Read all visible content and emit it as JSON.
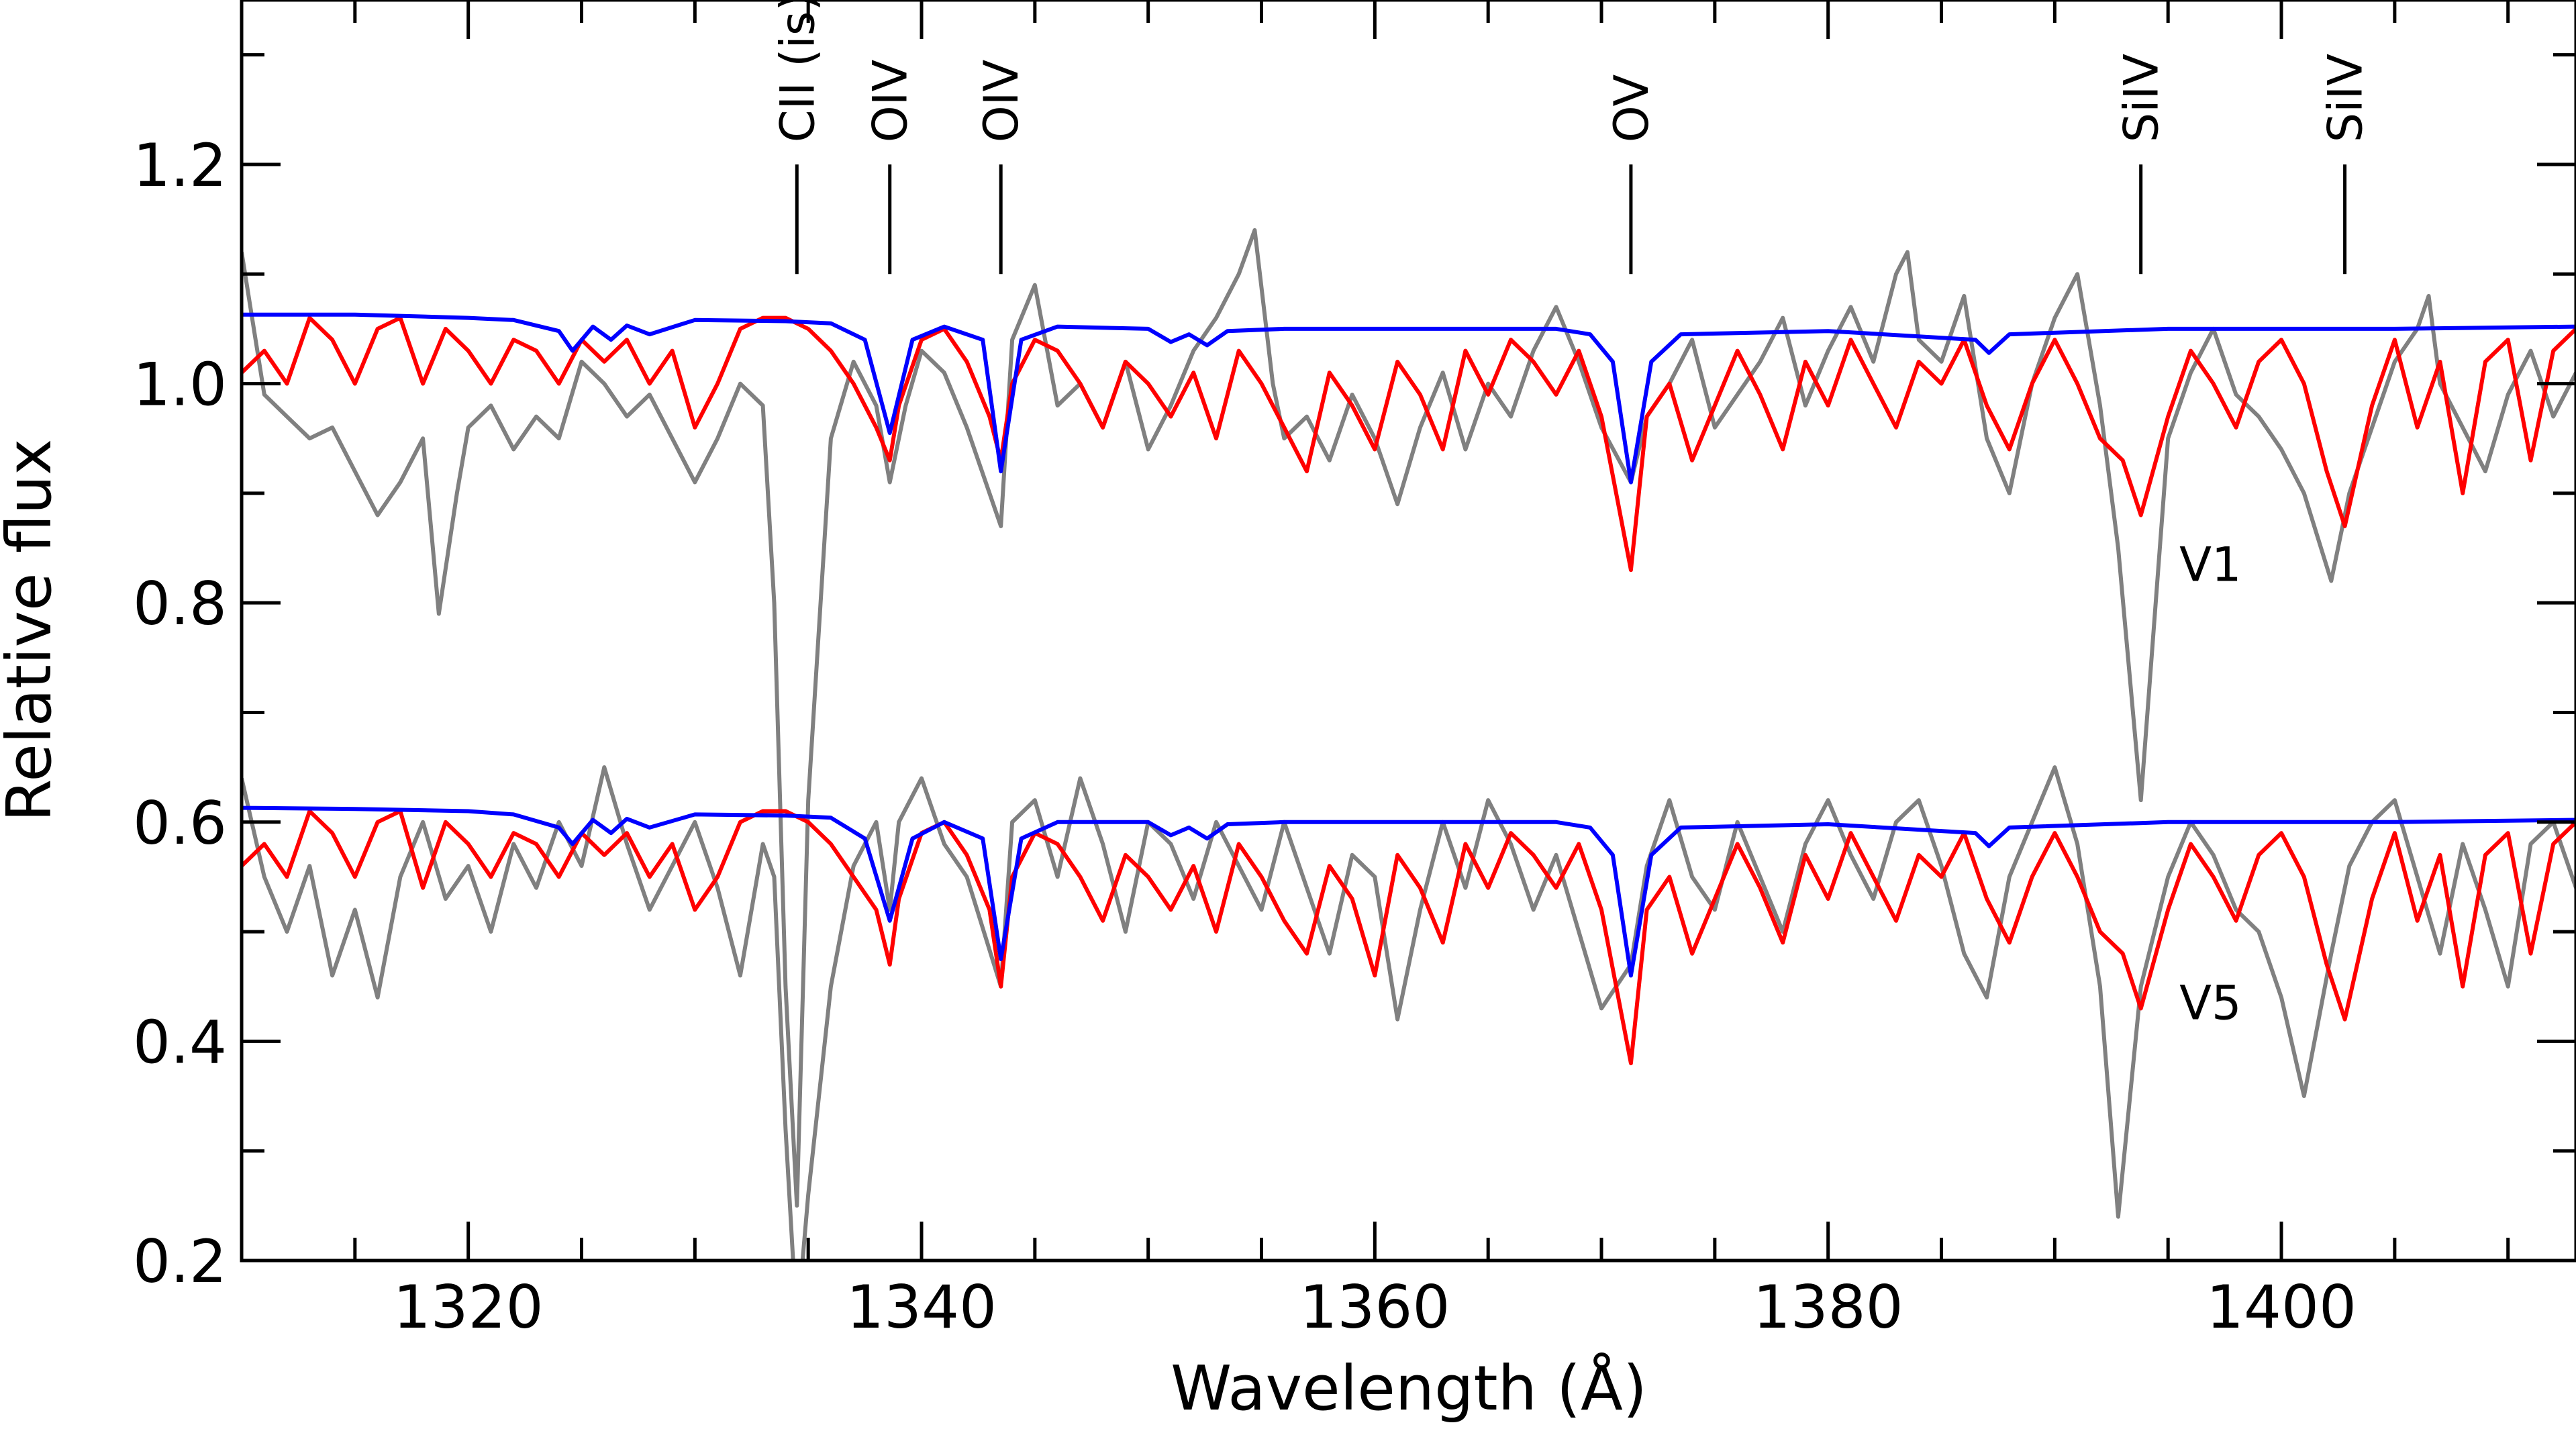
{
  "chart_data": {
    "type": "line",
    "title": "",
    "xlabel": "Wavelength (Å)",
    "ylabel": "Relative flux",
    "xlim": [
      1310,
      1413
    ],
    "ylim": [
      0.2,
      1.35
    ],
    "grid": false,
    "x_major_ticks": [
      1320,
      1340,
      1360,
      1380,
      1400
    ],
    "x_tick_labels": [
      "1320",
      "1340",
      "1360",
      "1380",
      "1400"
    ],
    "x_minor_step": 5,
    "y_major_ticks": [
      0.2,
      0.4,
      0.6,
      0.8,
      1.0,
      1.2
    ],
    "y_tick_labels": [
      "0.2",
      "0.4",
      "0.6",
      "0.8",
      "1.0",
      "1.2"
    ],
    "y_minor_step": 0.1,
    "line_ids": [
      {
        "label": "CII (is)",
        "wavelength": 1334.5
      },
      {
        "label": "OIV",
        "wavelength": 1338.6
      },
      {
        "label": "OIV",
        "wavelength": 1343.5
      },
      {
        "label": "OV",
        "wavelength": 1371.3
      },
      {
        "label": "SiIV",
        "wavelength": 1393.8
      },
      {
        "label": "SiIV",
        "wavelength": 1402.8
      }
    ],
    "spectrum_labels": [
      {
        "text": "V1",
        "x": 1395.5,
        "y": 0.82
      },
      {
        "text": "V5",
        "x": 1395.5,
        "y": 0.42
      }
    ],
    "series": [
      {
        "color": "#808080",
        "group": "V1",
        "x": [
          1310,
          1311,
          1312,
          1313,
          1314,
          1315,
          1316,
          1317,
          1318,
          1318.7,
          1319.5,
          1320,
          1321,
          1322,
          1323,
          1324,
          1325,
          1326,
          1327,
          1328,
          1329,
          1330,
          1331,
          1332,
          1333,
          1333.5,
          1334,
          1334.5,
          1335,
          1336,
          1337,
          1338,
          1338.6,
          1339.3,
          1340,
          1341,
          1342,
          1343.5,
          1344,
          1345,
          1346,
          1347,
          1348,
          1349,
          1350,
          1351,
          1352,
          1353,
          1354,
          1354.7,
          1355.5,
          1356,
          1357,
          1358,
          1359,
          1360,
          1361,
          1362,
          1363,
          1364,
          1365,
          1366,
          1367,
          1368,
          1369,
          1370,
          1371.3,
          1372,
          1373,
          1374,
          1375,
          1376,
          1377,
          1378,
          1379,
          1380,
          1381,
          1382,
          1383,
          1383.5,
          1384,
          1385,
          1386,
          1387,
          1388,
          1389,
          1390,
          1391,
          1392,
          1392.8,
          1393.8,
          1395,
          1396,
          1397,
          1398,
          1399,
          1400,
          1401,
          1402.2,
          1403,
          1404,
          1405,
          1406,
          1406.5,
          1407,
          1408,
          1409,
          1410,
          1411,
          1412,
          1413
        ],
        "y": [
          1.12,
          0.99,
          0.97,
          0.95,
          0.96,
          0.92,
          0.88,
          0.91,
          0.95,
          0.79,
          0.9,
          0.96,
          0.98,
          0.94,
          0.97,
          0.95,
          1.02,
          1.0,
          0.97,
          0.99,
          0.95,
          0.91,
          0.95,
          1.0,
          0.98,
          0.8,
          0.45,
          0.25,
          0.62,
          0.95,
          1.02,
          0.98,
          0.91,
          0.98,
          1.03,
          1.01,
          0.96,
          0.87,
          1.04,
          1.09,
          0.98,
          1.0,
          0.96,
          1.02,
          0.94,
          0.98,
          1.03,
          1.06,
          1.1,
          1.14,
          1.0,
          0.95,
          0.97,
          0.93,
          0.99,
          0.95,
          0.89,
          0.96,
          1.01,
          0.94,
          1.0,
          0.97,
          1.03,
          1.07,
          1.02,
          0.96,
          0.91,
          0.97,
          1.0,
          1.04,
          0.96,
          0.99,
          1.02,
          1.06,
          0.98,
          1.03,
          1.07,
          1.02,
          1.1,
          1.12,
          1.04,
          1.02,
          1.08,
          0.95,
          0.9,
          1.0,
          1.06,
          1.1,
          0.98,
          0.85,
          0.62,
          0.95,
          1.01,
          1.05,
          0.99,
          0.97,
          0.94,
          0.9,
          0.82,
          0.9,
          0.96,
          1.02,
          1.05,
          1.08,
          1.0,
          0.96,
          0.92,
          0.99,
          1.03,
          0.97,
          1.01
        ],
        "y_note": "V1 observed spectrum, relative flux"
      },
      {
        "color": "#ff0000",
        "group": "V1",
        "x": [
          1310,
          1311,
          1312,
          1313,
          1314,
          1315,
          1316,
          1317,
          1318,
          1319,
          1320,
          1321,
          1322,
          1323,
          1324,
          1325,
          1326,
          1327,
          1328,
          1329,
          1330,
          1331,
          1332,
          1333,
          1334,
          1335,
          1336,
          1337,
          1338,
          1338.6,
          1339,
          1340,
          1341,
          1342,
          1343,
          1343.5,
          1344,
          1345,
          1346,
          1347,
          1348,
          1349,
          1350,
          1351,
          1352,
          1353,
          1354,
          1355,
          1356,
          1357,
          1358,
          1359,
          1360,
          1361,
          1362,
          1363,
          1364,
          1365,
          1366,
          1367,
          1368,
          1369,
          1370,
          1371.3,
          1372,
          1373,
          1374,
          1375,
          1376,
          1377,
          1378,
          1379,
          1380,
          1381,
          1382,
          1383,
          1384,
          1385,
          1386,
          1387,
          1388,
          1389,
          1390,
          1391,
          1392,
          1393,
          1393.8,
          1395,
          1396,
          1397,
          1398,
          1399,
          1400,
          1401,
          1402,
          1402.8,
          1404,
          1405,
          1406,
          1407,
          1408,
          1409,
          1410,
          1411,
          1412,
          1413
        ],
        "y": [
          1.01,
          1.03,
          1.0,
          1.06,
          1.04,
          1.0,
          1.05,
          1.06,
          1.0,
          1.05,
          1.03,
          1.0,
          1.04,
          1.03,
          1.0,
          1.04,
          1.02,
          1.04,
          1.0,
          1.03,
          0.96,
          1.0,
          1.05,
          1.06,
          1.06,
          1.05,
          1.03,
          1.0,
          0.96,
          0.93,
          0.98,
          1.04,
          1.05,
          1.02,
          0.97,
          0.93,
          1.0,
          1.04,
          1.03,
          1.0,
          0.96,
          1.02,
          1.0,
          0.97,
          1.01,
          0.95,
          1.03,
          1.0,
          0.96,
          0.92,
          1.01,
          0.98,
          0.94,
          1.02,
          0.99,
          0.94,
          1.03,
          0.99,
          1.04,
          1.02,
          0.99,
          1.03,
          0.97,
          0.83,
          0.97,
          1.0,
          0.93,
          0.98,
          1.03,
          0.99,
          0.94,
          1.02,
          0.98,
          1.04,
          1.0,
          0.96,
          1.02,
          1.0,
          1.04,
          0.98,
          0.94,
          1.0,
          1.04,
          1.0,
          0.95,
          0.93,
          0.88,
          0.97,
          1.03,
          1.0,
          0.96,
          1.02,
          1.04,
          1.0,
          0.92,
          0.87,
          0.98,
          1.04,
          0.96,
          1.02,
          0.9,
          1.02,
          1.04,
          0.93,
          1.03,
          1.05
        ],
        "y_note": "V1 model spectrum, relative flux"
      },
      {
        "color": "#0000ff",
        "group": "V1",
        "x": [
          1310,
          1315,
          1320,
          1322,
          1324,
          1324.6,
          1325.5,
          1326.3,
          1327,
          1328,
          1330,
          1334,
          1336,
          1337.5,
          1338.6,
          1339.6,
          1341,
          1342.7,
          1343.5,
          1344.4,
          1346,
          1350,
          1351,
          1351.8,
          1352.6,
          1353.5,
          1356,
          1362,
          1368,
          1369.5,
          1370.5,
          1371.3,
          1372.2,
          1373.5,
          1380,
          1386.5,
          1387.1,
          1388,
          1395,
          1405,
          1413
        ],
        "y": [
          1.063,
          1.063,
          1.06,
          1.058,
          1.048,
          1.03,
          1.052,
          1.04,
          1.053,
          1.045,
          1.058,
          1.057,
          1.055,
          1.04,
          0.955,
          1.04,
          1.052,
          1.04,
          0.92,
          1.04,
          1.052,
          1.05,
          1.038,
          1.045,
          1.035,
          1.048,
          1.05,
          1.05,
          1.05,
          1.045,
          1.02,
          0.91,
          1.02,
          1.045,
          1.048,
          1.04,
          1.028,
          1.045,
          1.05,
          1.05,
          1.052
        ],
        "y_note": "V1 model spectrum, relative flux"
      },
      {
        "color": "#808080",
        "group": "V5",
        "x": [
          1310,
          1311,
          1312,
          1313,
          1314,
          1315,
          1316,
          1317,
          1318,
          1319,
          1320,
          1321,
          1322,
          1323,
          1324,
          1325,
          1326,
          1327,
          1328,
          1329,
          1330,
          1331,
          1332,
          1333,
          1333.5,
          1334,
          1334.5,
          1335,
          1336,
          1337,
          1338,
          1338.6,
          1339,
          1340,
          1341,
          1342,
          1343.5,
          1344,
          1345,
          1346,
          1347,
          1348,
          1349,
          1350,
          1351,
          1352,
          1353,
          1354,
          1355,
          1356,
          1357,
          1358,
          1359,
          1360,
          1361,
          1362,
          1363,
          1364,
          1365,
          1366,
          1367,
          1368,
          1369,
          1370,
          1371.3,
          1372,
          1373,
          1374,
          1375,
          1376,
          1377,
          1378,
          1379,
          1380,
          1381,
          1382,
          1383,
          1384,
          1385,
          1386,
          1387,
          1388,
          1389,
          1390,
          1391,
          1392,
          1392.8,
          1393.8,
          1395,
          1396,
          1397,
          1398,
          1399,
          1400,
          1401,
          1402.2,
          1403,
          1404,
          1405,
          1406,
          1407,
          1408,
          1409,
          1410,
          1411,
          1412,
          1413
        ],
        "y": [
          0.64,
          0.55,
          0.5,
          0.56,
          0.46,
          0.52,
          0.44,
          0.55,
          0.6,
          0.53,
          0.56,
          0.5,
          0.58,
          0.54,
          0.6,
          0.56,
          0.65,
          0.58,
          0.52,
          0.56,
          0.6,
          0.54,
          0.46,
          0.58,
          0.55,
          0.32,
          0.14,
          0.26,
          0.45,
          0.56,
          0.6,
          0.52,
          0.6,
          0.64,
          0.58,
          0.55,
          0.45,
          0.6,
          0.62,
          0.55,
          0.64,
          0.58,
          0.5,
          0.6,
          0.58,
          0.53,
          0.6,
          0.56,
          0.52,
          0.6,
          0.54,
          0.48,
          0.57,
          0.55,
          0.42,
          0.52,
          0.6,
          0.54,
          0.62,
          0.58,
          0.52,
          0.57,
          0.5,
          0.43,
          0.47,
          0.56,
          0.62,
          0.55,
          0.52,
          0.6,
          0.55,
          0.5,
          0.58,
          0.62,
          0.57,
          0.53,
          0.6,
          0.62,
          0.56,
          0.48,
          0.44,
          0.55,
          0.6,
          0.65,
          0.58,
          0.45,
          0.24,
          0.45,
          0.55,
          0.6,
          0.57,
          0.52,
          0.5,
          0.44,
          0.35,
          0.48,
          0.56,
          0.6,
          0.62,
          0.55,
          0.48,
          0.58,
          0.52,
          0.45,
          0.58,
          0.6,
          0.54
        ],
        "y_note": "V5 observed spectrum, relative flux"
      },
      {
        "color": "#ff0000",
        "group": "V5",
        "x": [
          1310,
          1311,
          1312,
          1313,
          1314,
          1315,
          1316,
          1317,
          1318,
          1319,
          1320,
          1321,
          1322,
          1323,
          1324,
          1325,
          1326,
          1327,
          1328,
          1329,
          1330,
          1331,
          1332,
          1333,
          1334,
          1335,
          1336,
          1337,
          1338,
          1338.6,
          1339,
          1340,
          1341,
          1342,
          1343,
          1343.5,
          1344,
          1345,
          1346,
          1347,
          1348,
          1349,
          1350,
          1351,
          1352,
          1353,
          1354,
          1355,
          1356,
          1357,
          1358,
          1359,
          1360,
          1361,
          1362,
          1363,
          1364,
          1365,
          1366,
          1367,
          1368,
          1369,
          1370,
          1371.3,
          1372,
          1373,
          1374,
          1375,
          1376,
          1377,
          1378,
          1379,
          1380,
          1381,
          1382,
          1383,
          1384,
          1385,
          1386,
          1387,
          1388,
          1389,
          1390,
          1391,
          1392,
          1393,
          1393.8,
          1395,
          1396,
          1397,
          1398,
          1399,
          1400,
          1401,
          1402,
          1402.8,
          1404,
          1405,
          1406,
          1407,
          1408,
          1409,
          1410,
          1411,
          1412,
          1413
        ],
        "y": [
          0.56,
          0.58,
          0.55,
          0.61,
          0.59,
          0.55,
          0.6,
          0.61,
          0.54,
          0.6,
          0.58,
          0.55,
          0.59,
          0.58,
          0.55,
          0.59,
          0.57,
          0.59,
          0.55,
          0.58,
          0.52,
          0.55,
          0.6,
          0.61,
          0.61,
          0.6,
          0.58,
          0.55,
          0.52,
          0.47,
          0.53,
          0.59,
          0.6,
          0.57,
          0.52,
          0.45,
          0.55,
          0.59,
          0.58,
          0.55,
          0.51,
          0.57,
          0.55,
          0.52,
          0.56,
          0.5,
          0.58,
          0.55,
          0.51,
          0.48,
          0.56,
          0.53,
          0.46,
          0.57,
          0.54,
          0.49,
          0.58,
          0.54,
          0.59,
          0.57,
          0.54,
          0.58,
          0.52,
          0.38,
          0.52,
          0.55,
          0.48,
          0.53,
          0.58,
          0.54,
          0.49,
          0.57,
          0.53,
          0.59,
          0.55,
          0.51,
          0.57,
          0.55,
          0.59,
          0.53,
          0.49,
          0.55,
          0.59,
          0.55,
          0.5,
          0.48,
          0.43,
          0.52,
          0.58,
          0.55,
          0.51,
          0.57,
          0.59,
          0.55,
          0.47,
          0.42,
          0.53,
          0.59,
          0.51,
          0.57,
          0.45,
          0.57,
          0.59,
          0.48,
          0.58,
          0.6
        ],
        "y_note": "V5 model spectrum, relative flux"
      },
      {
        "color": "#0000ff",
        "group": "V5",
        "x": [
          1310,
          1315,
          1320,
          1322,
          1324,
          1324.6,
          1325.5,
          1326.3,
          1327,
          1328,
          1330,
          1334,
          1336,
          1337.5,
          1338.6,
          1339.6,
          1341,
          1342.7,
          1343.5,
          1344.4,
          1346,
          1350,
          1351,
          1351.8,
          1352.6,
          1353.5,
          1356,
          1362,
          1368,
          1369.5,
          1370.5,
          1371.3,
          1372.2,
          1373.5,
          1380,
          1386.5,
          1387.1,
          1388,
          1395,
          1405,
          1413
        ],
        "y": [
          0.613,
          0.612,
          0.61,
          0.607,
          0.595,
          0.58,
          0.602,
          0.59,
          0.603,
          0.595,
          0.607,
          0.606,
          0.604,
          0.585,
          0.51,
          0.585,
          0.6,
          0.585,
          0.475,
          0.585,
          0.6,
          0.6,
          0.588,
          0.595,
          0.585,
          0.598,
          0.6,
          0.6,
          0.6,
          0.595,
          0.57,
          0.46,
          0.57,
          0.595,
          0.598,
          0.59,
          0.578,
          0.595,
          0.6,
          0.6,
          0.602
        ],
        "y_note": "V5 model spectrum, relative flux"
      }
    ]
  }
}
